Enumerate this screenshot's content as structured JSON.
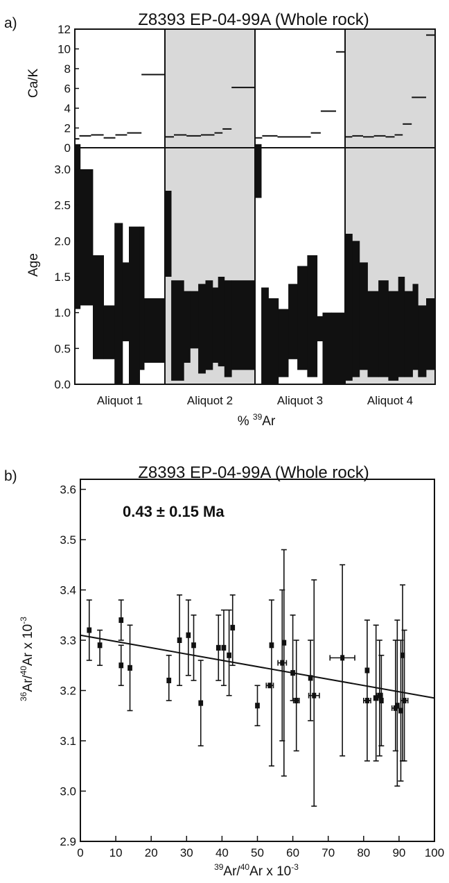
{
  "chart_data": [
    {
      "type": "bar",
      "panel_label": "a)",
      "title": "Z8393 EP-04-99A (Whole rock)",
      "xlabel_main": "% ",
      "xlabel_sup": "39",
      "xlabel_tail": "Ar",
      "aliquots": [
        "Aliquot 1",
        "Aliquot 2",
        "Aliquot 3",
        "Aliquot 4"
      ],
      "shaded_aliquots": [
        false,
        true,
        false,
        true
      ],
      "x_range": [
        0,
        400
      ],
      "cak": {
        "ylabel": "Ca/K",
        "ylim": [
          0,
          12
        ],
        "yticks": [
          "0",
          "2",
          "4",
          "6",
          "8",
          "10",
          "12"
        ],
        "steps": [
          [
            {
              "x0": 0,
              "x1": 5,
              "v": 0.9
            },
            {
              "x0": 5,
              "x1": 18,
              "v": 1.2
            },
            {
              "x0": 18,
              "x1": 32,
              "v": 1.3
            },
            {
              "x0": 32,
              "x1": 45,
              "v": 1.0
            },
            {
              "x0": 45,
              "x1": 58,
              "v": 1.3
            },
            {
              "x0": 58,
              "x1": 74,
              "v": 1.5
            },
            {
              "x0": 74,
              "x1": 100,
              "v": 7.4
            }
          ],
          [
            {
              "x0": 0,
              "x1": 10,
              "v": 1.1
            },
            {
              "x0": 10,
              "x1": 24,
              "v": 1.3
            },
            {
              "x0": 24,
              "x1": 40,
              "v": 1.2
            },
            {
              "x0": 40,
              "x1": 55,
              "v": 1.3
            },
            {
              "x0": 55,
              "x1": 64,
              "v": 1.5
            },
            {
              "x0": 64,
              "x1": 74,
              "v": 1.9
            },
            {
              "x0": 74,
              "x1": 100,
              "v": 6.1
            }
          ],
          [
            {
              "x0": 0,
              "x1": 8,
              "v": 1.0
            },
            {
              "x0": 8,
              "x1": 25,
              "v": 1.2
            },
            {
              "x0": 25,
              "x1": 45,
              "v": 1.1
            },
            {
              "x0": 45,
              "x1": 62,
              "v": 1.1
            },
            {
              "x0": 62,
              "x1": 73,
              "v": 1.5
            },
            {
              "x0": 73,
              "x1": 90,
              "v": 3.7
            },
            {
              "x0": 90,
              "x1": 100,
              "v": 9.7
            }
          ],
          [
            {
              "x0": 0,
              "x1": 8,
              "v": 1.1
            },
            {
              "x0": 8,
              "x1": 20,
              "v": 1.2
            },
            {
              "x0": 20,
              "x1": 32,
              "v": 1.1
            },
            {
              "x0": 32,
              "x1": 45,
              "v": 1.2
            },
            {
              "x0": 45,
              "x1": 55,
              "v": 1.1
            },
            {
              "x0": 55,
              "x1": 64,
              "v": 1.3
            },
            {
              "x0": 64,
              "x1": 74,
              "v": 2.4
            },
            {
              "x0": 74,
              "x1": 90,
              "v": 5.1
            },
            {
              "x0": 90,
              "x1": 100,
              "v": 11.4
            }
          ]
        ]
      },
      "age": {
        "ylabel": "Age",
        "ylim": [
          0,
          3.3
        ],
        "yticks": [
          "0.0",
          "0.5",
          "1.0",
          "1.5",
          "2.0",
          "2.5",
          "3.0"
        ],
        "steps": [
          [
            {
              "x0": 0,
              "x1": 6,
              "lo": 1.05,
              "hi": 3.35
            },
            {
              "x0": 6,
              "x1": 20,
              "lo": 1.1,
              "hi": 3.0
            },
            {
              "x0": 20,
              "x1": 32,
              "lo": 0.35,
              "hi": 1.8
            },
            {
              "x0": 32,
              "x1": 44,
              "lo": 0.35,
              "hi": 1.1
            },
            {
              "x0": 44,
              "x1": 53,
              "lo": 0.0,
              "hi": 2.25
            },
            {
              "x0": 53,
              "x1": 60,
              "lo": 0.6,
              "hi": 1.7
            },
            {
              "x0": 60,
              "x1": 72,
              "lo": 0.0,
              "hi": 2.2
            },
            {
              "x0": 72,
              "x1": 77,
              "lo": 0.2,
              "hi": 2.2
            },
            {
              "x0": 77,
              "x1": 100,
              "lo": 0.3,
              "hi": 1.2
            }
          ],
          [
            {
              "x0": 0,
              "x1": 7,
              "lo": 1.5,
              "hi": 2.7
            },
            {
              "x0": 7,
              "x1": 21,
              "lo": 0.05,
              "hi": 1.45
            },
            {
              "x0": 21,
              "x1": 28,
              "lo": 0.3,
              "hi": 1.3
            },
            {
              "x0": 28,
              "x1": 37,
              "lo": 0.5,
              "hi": 1.3
            },
            {
              "x0": 37,
              "x1": 45,
              "lo": 0.15,
              "hi": 1.4
            },
            {
              "x0": 45,
              "x1": 53,
              "lo": 0.2,
              "hi": 1.45
            },
            {
              "x0": 53,
              "x1": 59,
              "lo": 0.3,
              "hi": 1.35
            },
            {
              "x0": 59,
              "x1": 66,
              "lo": 0.25,
              "hi": 1.5
            },
            {
              "x0": 66,
              "x1": 74,
              "lo": 0.1,
              "hi": 1.45
            },
            {
              "x0": 74,
              "x1": 100,
              "lo": 0.2,
              "hi": 1.45
            }
          ],
          [
            {
              "x0": 0,
              "x1": 7,
              "lo": 2.6,
              "hi": 3.35
            },
            {
              "x0": 7,
              "x1": 15,
              "lo": 0.0,
              "hi": 1.35
            },
            {
              "x0": 15,
              "x1": 26,
              "lo": 0.0,
              "hi": 1.2
            },
            {
              "x0": 26,
              "x1": 37,
              "lo": 0.1,
              "hi": 1.05
            },
            {
              "x0": 37,
              "x1": 47,
              "lo": 0.35,
              "hi": 1.4
            },
            {
              "x0": 47,
              "x1": 58,
              "lo": 0.2,
              "hi": 1.65
            },
            {
              "x0": 58,
              "x1": 69,
              "lo": 0.1,
              "hi": 1.8
            },
            {
              "x0": 69,
              "x1": 75,
              "lo": 0.6,
              "hi": 0.95
            },
            {
              "x0": 75,
              "x1": 85,
              "lo": 0.0,
              "hi": 1.0
            },
            {
              "x0": 85,
              "x1": 100,
              "lo": 0.0,
              "hi": 1.0
            }
          ],
          [
            {
              "x0": 0,
              "x1": 8,
              "lo": 0.05,
              "hi": 2.1
            },
            {
              "x0": 8,
              "x1": 16,
              "lo": 0.1,
              "hi": 2.0
            },
            {
              "x0": 16,
              "x1": 25,
              "lo": 0.2,
              "hi": 1.7
            },
            {
              "x0": 25,
              "x1": 37,
              "lo": 0.1,
              "hi": 1.3
            },
            {
              "x0": 37,
              "x1": 48,
              "lo": 0.1,
              "hi": 1.45
            },
            {
              "x0": 48,
              "x1": 59,
              "lo": 0.05,
              "hi": 1.3
            },
            {
              "x0": 59,
              "x1": 66,
              "lo": 0.1,
              "hi": 1.5
            },
            {
              "x0": 66,
              "x1": 75,
              "lo": 0.1,
              "hi": 1.3
            },
            {
              "x0": 75,
              "x1": 81,
              "lo": 0.2,
              "hi": 1.4
            },
            {
              "x0": 81,
              "x1": 90,
              "lo": 0.1,
              "hi": 1.1
            },
            {
              "x0": 90,
              "x1": 100,
              "lo": 0.2,
              "hi": 1.2
            }
          ]
        ]
      }
    },
    {
      "type": "scatter",
      "panel_label": "b)",
      "title": "Z8393 EP-04-99A (Whole rock)",
      "annotation": "0.43 ± 0.15 Ma",
      "xlabel": {
        "parts": [
          [
            "sup",
            "39"
          ],
          [
            "t",
            "Ar/"
          ],
          [
            "sup",
            "40"
          ],
          [
            "t",
            "Ar x 10"
          ],
          [
            "sup",
            "-3"
          ]
        ]
      },
      "ylabel": {
        "parts": [
          [
            "sup",
            "36"
          ],
          [
            "t",
            "Ar/"
          ],
          [
            "sup",
            "40"
          ],
          [
            "t",
            "Ar x 10"
          ],
          [
            "sup",
            "-3"
          ]
        ]
      },
      "xlim": [
        0,
        100
      ],
      "ylim": [
        2.9,
        3.62
      ],
      "xticks": [
        "0",
        "10",
        "20",
        "30",
        "40",
        "50",
        "60",
        "70",
        "80",
        "90",
        "100"
      ],
      "yticks": [
        "2.9",
        "3.0",
        "3.1",
        "3.2",
        "3.3",
        "3.4",
        "3.5",
        "3.6"
      ],
      "fit_line": [
        [
          0,
          3.31
        ],
        [
          100,
          3.185
        ]
      ],
      "points": [
        {
          "x": 2.5,
          "y": 3.32,
          "ylo": 3.26,
          "yhi": 3.38,
          "xerr": 0.5
        },
        {
          "x": 5.5,
          "y": 3.29,
          "ylo": 3.25,
          "yhi": 3.32,
          "xerr": 0.5
        },
        {
          "x": 11.5,
          "y": 3.34,
          "ylo": 3.3,
          "yhi": 3.38,
          "xerr": 0.5
        },
        {
          "x": 11.5,
          "y": 3.25,
          "ylo": 3.21,
          "yhi": 3.29,
          "xerr": 0.5
        },
        {
          "x": 14,
          "y": 3.245,
          "ylo": 3.16,
          "yhi": 3.33,
          "xerr": 0.5
        },
        {
          "x": 25,
          "y": 3.22,
          "ylo": 3.18,
          "yhi": 3.27,
          "xerr": 0.5
        },
        {
          "x": 28,
          "y": 3.3,
          "ylo": 3.21,
          "yhi": 3.39,
          "xerr": 0.5
        },
        {
          "x": 30.5,
          "y": 3.31,
          "ylo": 3.23,
          "yhi": 3.38,
          "xerr": 0.5
        },
        {
          "x": 32,
          "y": 3.29,
          "ylo": 3.22,
          "yhi": 3.35,
          "xerr": 0.5
        },
        {
          "x": 34,
          "y": 3.175,
          "ylo": 3.09,
          "yhi": 3.26,
          "xerr": 0.5
        },
        {
          "x": 39,
          "y": 3.285,
          "ylo": 3.22,
          "yhi": 3.35,
          "xerr": 0.5
        },
        {
          "x": 40.5,
          "y": 3.285,
          "ylo": 3.21,
          "yhi": 3.36,
          "xerr": 0.5
        },
        {
          "x": 42,
          "y": 3.27,
          "ylo": 3.19,
          "yhi": 3.36,
          "xerr": 0.5
        },
        {
          "x": 43,
          "y": 3.325,
          "ylo": 3.25,
          "yhi": 3.39,
          "xerr": 0.5
        },
        {
          "x": 50,
          "y": 3.17,
          "ylo": 3.13,
          "yhi": 3.21,
          "xerr": 0.5
        },
        {
          "x": 53.5,
          "y": 3.21,
          "ylo": 3.21,
          "yhi": 3.21,
          "xerr": 1.0
        },
        {
          "x": 54,
          "y": 3.29,
          "ylo": 3.05,
          "yhi": 3.38,
          "xerr": 0.5
        },
        {
          "x": 57,
          "y": 3.255,
          "ylo": 3.1,
          "yhi": 3.4,
          "xerr": 1.2
        },
        {
          "x": 57.5,
          "y": 3.295,
          "ylo": 3.03,
          "yhi": 3.48,
          "xerr": 0.5
        },
        {
          "x": 60,
          "y": 3.235,
          "ylo": 3.18,
          "yhi": 3.35,
          "xerr": 0.5
        },
        {
          "x": 61,
          "y": 3.18,
          "ylo": 3.08,
          "yhi": 3.3,
          "xerr": 0.8
        },
        {
          "x": 65,
          "y": 3.225,
          "ylo": 3.14,
          "yhi": 3.3,
          "xerr": 0.5
        },
        {
          "x": 66,
          "y": 3.19,
          "ylo": 2.97,
          "yhi": 3.42,
          "xerr": 1.5
        },
        {
          "x": 74,
          "y": 3.265,
          "ylo": 3.07,
          "yhi": 3.45,
          "xerr": 3.5
        },
        {
          "x": 81,
          "y": 3.24,
          "ylo": 3.06,
          "yhi": 3.34,
          "xerr": 0.5
        },
        {
          "x": 81,
          "y": 3.18,
          "ylo": 3.18,
          "yhi": 3.18,
          "xerr": 1.0
        },
        {
          "x": 83.5,
          "y": 3.185,
          "ylo": 3.06,
          "yhi": 3.33,
          "xerr": 0.6
        },
        {
          "x": 84.5,
          "y": 3.19,
          "ylo": 3.07,
          "yhi": 3.3,
          "xerr": 0.8
        },
        {
          "x": 85,
          "y": 3.18,
          "ylo": 3.09,
          "yhi": 3.27,
          "xerr": 0.5
        },
        {
          "x": 89,
          "y": 3.165,
          "ylo": 3.08,
          "yhi": 3.3,
          "xerr": 1.0
        },
        {
          "x": 89.5,
          "y": 3.17,
          "ylo": 3.01,
          "yhi": 3.34,
          "xerr": 0.5
        },
        {
          "x": 90.5,
          "y": 3.16,
          "ylo": 3.02,
          "yhi": 3.3,
          "xerr": 0.5
        },
        {
          "x": 91,
          "y": 3.27,
          "ylo": 3.06,
          "yhi": 3.41,
          "xerr": 0.5
        },
        {
          "x": 91.5,
          "y": 3.18,
          "ylo": 3.06,
          "yhi": 3.32,
          "xerr": 1.0
        }
      ]
    }
  ]
}
